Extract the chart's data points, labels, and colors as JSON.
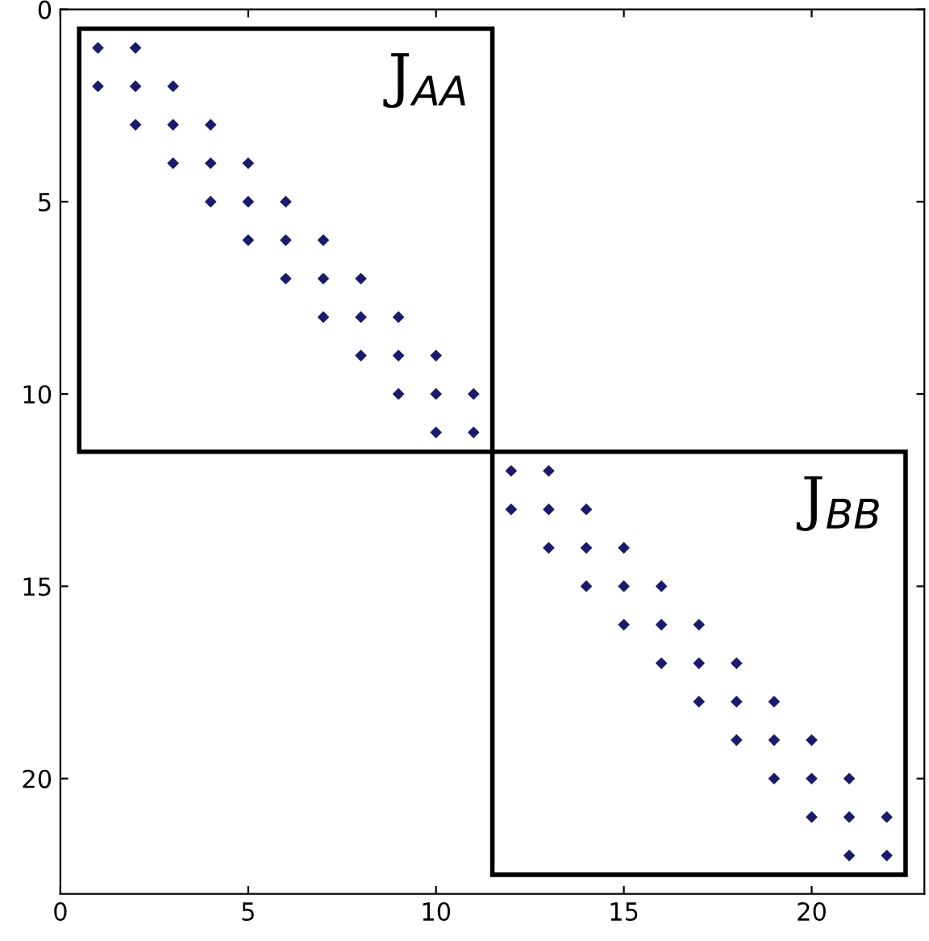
{
  "chart_data": {
    "type": "scatter",
    "xlim": [
      0,
      23
    ],
    "ylim": [
      23,
      0
    ],
    "xticks": [
      0,
      5,
      10,
      15,
      20
    ],
    "yticks": [
      0,
      5,
      10,
      15,
      20
    ],
    "marker": "diamond",
    "grid": false,
    "annotations": [
      "J$_{AA}$",
      "J$_{BB}$"
    ],
    "series": [
      {
        "color": "#1b1b6b",
        "x": [
          1,
          2,
          1,
          2,
          3,
          2,
          3,
          4,
          3,
          4,
          5,
          4,
          5,
          6,
          5,
          6,
          7,
          6,
          7,
          8,
          7,
          8,
          9,
          8,
          9,
          10,
          9,
          10,
          11,
          10,
          11
        ],
        "values": [
          1,
          1,
          2,
          2,
          2,
          3,
          3,
          3,
          4,
          4,
          4,
          5,
          5,
          5,
          6,
          6,
          6,
          7,
          7,
          7,
          8,
          8,
          8,
          9,
          9,
          9,
          10,
          10,
          10,
          11,
          11
        ]
      },
      {
        "color": "#1b1b6b",
        "x": [
          12,
          13,
          12,
          13,
          14,
          13,
          14,
          15,
          14,
          15,
          16,
          15,
          16,
          17,
          16,
          17,
          18,
          17,
          18,
          19,
          18,
          19,
          20,
          19,
          20,
          21,
          20,
          21,
          22,
          21,
          22
        ],
        "values": [
          12,
          12,
          13,
          13,
          13,
          14,
          14,
          14,
          15,
          15,
          15,
          16,
          16,
          16,
          17,
          17,
          17,
          18,
          18,
          18,
          19,
          19,
          19,
          20,
          20,
          20,
          21,
          21,
          21,
          22,
          22
        ]
      }
    ]
  }
}
